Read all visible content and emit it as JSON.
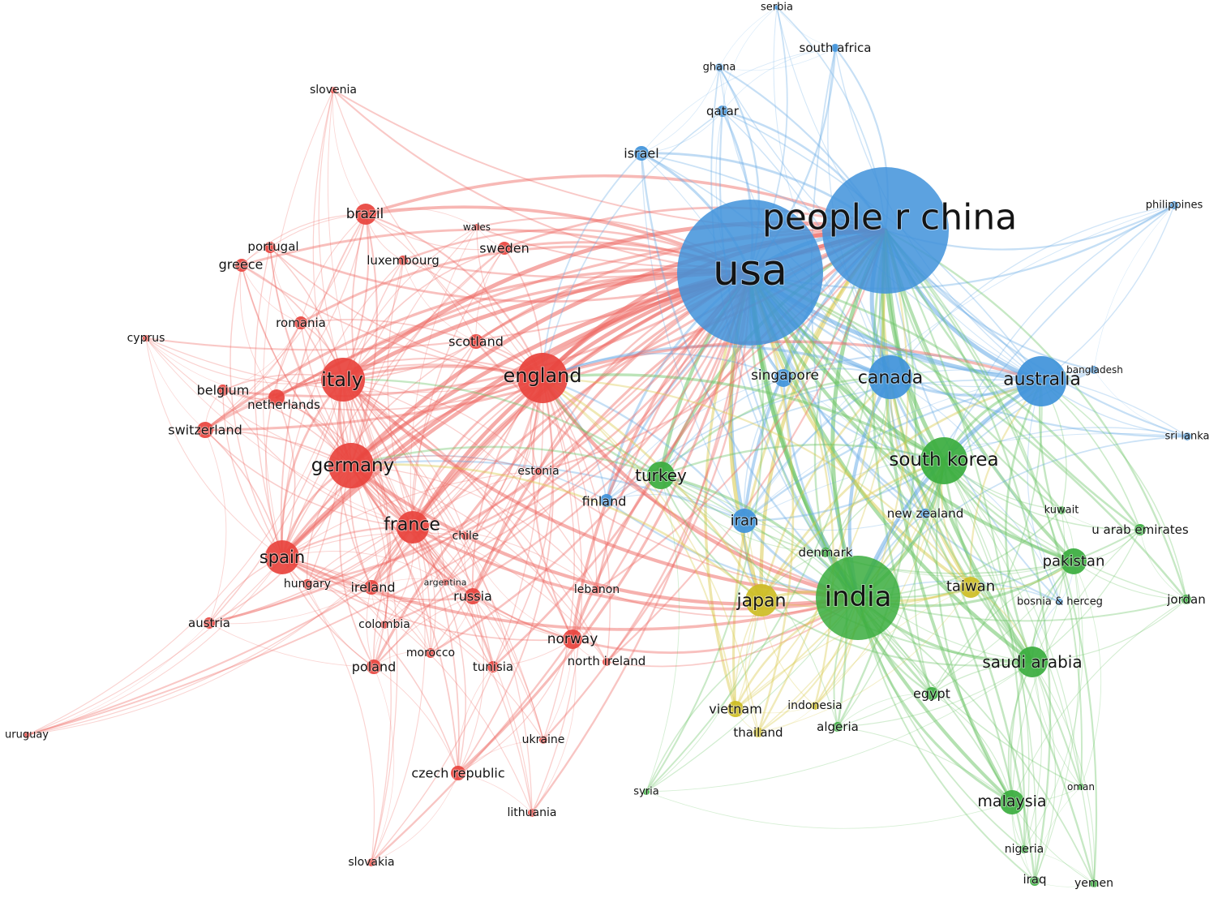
{
  "clusters": {
    "red": "#e8433d",
    "blue": "#3f92da",
    "green": "#3aad3e",
    "yellow": "#cdbd24"
  },
  "edge_colors": {
    "red": "#ee6a64",
    "blue": "#6aace6",
    "green": "#6cc466",
    "yellow": "#d9c94a"
  },
  "nodes": [
    {
      "id": "people r china",
      "cluster": "blue"
    },
    {
      "id": "usa",
      "cluster": "blue"
    },
    {
      "id": "canada",
      "cluster": "blue"
    },
    {
      "id": "australia",
      "cluster": "blue"
    },
    {
      "id": "singapore",
      "cluster": "blue"
    },
    {
      "id": "iran",
      "cluster": "blue"
    },
    {
      "id": "israel",
      "cluster": "blue"
    },
    {
      "id": "qatar",
      "cluster": "blue"
    },
    {
      "id": "ghana",
      "cluster": "blue"
    },
    {
      "id": "south africa",
      "cluster": "blue"
    },
    {
      "id": "serbia",
      "cluster": "blue"
    },
    {
      "id": "philippines",
      "cluster": "blue"
    },
    {
      "id": "bangladesh",
      "cluster": "blue"
    },
    {
      "id": "sri lanka",
      "cluster": "blue"
    },
    {
      "id": "finland",
      "cluster": "blue"
    },
    {
      "id": "new zealand",
      "cluster": "blue"
    },
    {
      "id": "bosnia & herceg",
      "cluster": "blue"
    },
    {
      "id": "england",
      "cluster": "red"
    },
    {
      "id": "italy",
      "cluster": "red"
    },
    {
      "id": "germany",
      "cluster": "red"
    },
    {
      "id": "france",
      "cluster": "red"
    },
    {
      "id": "spain",
      "cluster": "red"
    },
    {
      "id": "brazil",
      "cluster": "red"
    },
    {
      "id": "portugal",
      "cluster": "red"
    },
    {
      "id": "greece",
      "cluster": "red"
    },
    {
      "id": "luxembourg",
      "cluster": "red"
    },
    {
      "id": "wales",
      "cluster": "red"
    },
    {
      "id": "sweden",
      "cluster": "red"
    },
    {
      "id": "slovenia",
      "cluster": "red"
    },
    {
      "id": "cyprus",
      "cluster": "red"
    },
    {
      "id": "romania",
      "cluster": "red"
    },
    {
      "id": "scotland",
      "cluster": "red"
    },
    {
      "id": "belgium",
      "cluster": "red"
    },
    {
      "id": "netherlands",
      "cluster": "red"
    },
    {
      "id": "switzerland",
      "cluster": "red"
    },
    {
      "id": "estonia",
      "cluster": "red"
    },
    {
      "id": "chile",
      "cluster": "red"
    },
    {
      "id": "hungary",
      "cluster": "red"
    },
    {
      "id": "ireland",
      "cluster": "red"
    },
    {
      "id": "argentina",
      "cluster": "red"
    },
    {
      "id": "russia",
      "cluster": "red"
    },
    {
      "id": "austria",
      "cluster": "red"
    },
    {
      "id": "colombia",
      "cluster": "red"
    },
    {
      "id": "morocco",
      "cluster": "red"
    },
    {
      "id": "poland",
      "cluster": "red"
    },
    {
      "id": "tunisia",
      "cluster": "red"
    },
    {
      "id": "norway",
      "cluster": "red"
    },
    {
      "id": "north ireland",
      "cluster": "red"
    },
    {
      "id": "lebanon",
      "cluster": "red"
    },
    {
      "id": "uruguay",
      "cluster": "red"
    },
    {
      "id": "ukraine",
      "cluster": "red"
    },
    {
      "id": "czech republic",
      "cluster": "red"
    },
    {
      "id": "lithuania",
      "cluster": "red"
    },
    {
      "id": "slovakia",
      "cluster": "red"
    },
    {
      "id": "india",
      "cluster": "green"
    },
    {
      "id": "south korea",
      "cluster": "green"
    },
    {
      "id": "turkey",
      "cluster": "green"
    },
    {
      "id": "pakistan",
      "cluster": "green"
    },
    {
      "id": "saudi arabia",
      "cluster": "green"
    },
    {
      "id": "malaysia",
      "cluster": "green"
    },
    {
      "id": "egypt",
      "cluster": "green"
    },
    {
      "id": "kuwait",
      "cluster": "green"
    },
    {
      "id": "u arab emirates",
      "cluster": "green"
    },
    {
      "id": "jordan",
      "cluster": "green"
    },
    {
      "id": "oman",
      "cluster": "green"
    },
    {
      "id": "nigeria",
      "cluster": "green"
    },
    {
      "id": "iraq",
      "cluster": "green"
    },
    {
      "id": "yemen",
      "cluster": "green"
    },
    {
      "id": "syria",
      "cluster": "green"
    },
    {
      "id": "algeria",
      "cluster": "green"
    },
    {
      "id": "denmark",
      "cluster": "green"
    },
    {
      "id": "japan",
      "cluster": "yellow"
    },
    {
      "id": "taiwan",
      "cluster": "yellow"
    },
    {
      "id": "vietnam",
      "cluster": "yellow"
    },
    {
      "id": "thailand",
      "cluster": "yellow"
    },
    {
      "id": "indonesia",
      "cluster": "yellow"
    }
  ]
}
